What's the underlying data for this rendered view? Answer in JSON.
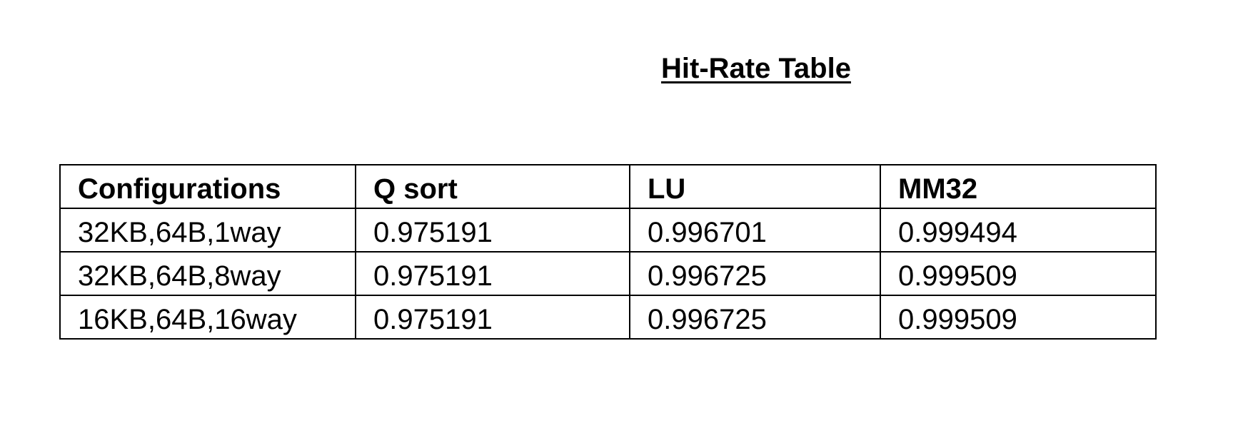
{
  "document": {
    "title": "Hit-Rate Table"
  },
  "table": {
    "headers": [
      "Configurations",
      "Q sort",
      "LU",
      "MM32"
    ],
    "rows": [
      [
        "32KB,64B,1way",
        "0.975191",
        "0.996701",
        "0.999494"
      ],
      [
        "32KB,64B,8way",
        "0.975191",
        "0.996725",
        "0.999509"
      ],
      [
        "16KB,64B,16way",
        "0.975191",
        "0.996725",
        "0.999509"
      ]
    ]
  }
}
